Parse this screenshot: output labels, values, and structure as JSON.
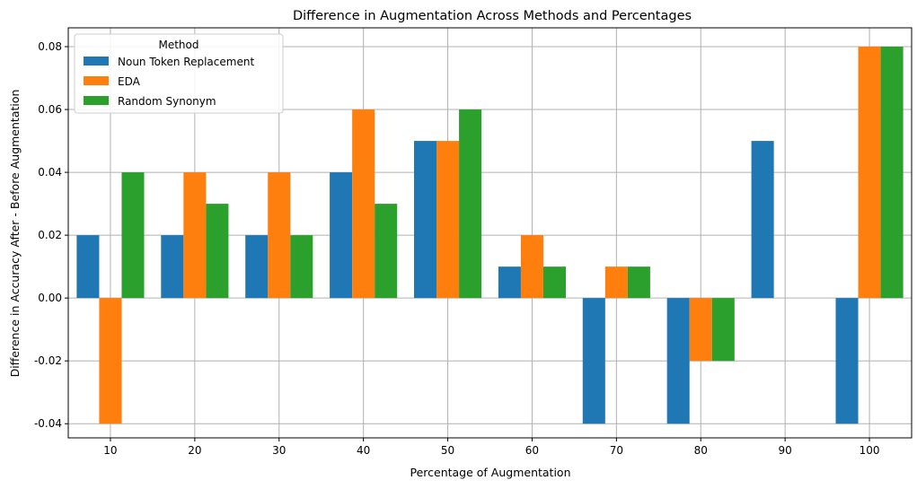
{
  "chart_data": {
    "type": "bar",
    "title": "Difference in Augmentation Across Methods and Percentages",
    "xlabel": "Percentage of Augmentation",
    "ylabel": "Difference in Accuracy After - Before Augmentation",
    "categories": [
      "10",
      "20",
      "30",
      "40",
      "50",
      "60",
      "70",
      "80",
      "90",
      "100"
    ],
    "series": [
      {
        "name": "Noun Token Replacement",
        "color": "#1f77b4",
        "values": [
          0.02,
          0.02,
          0.02,
          0.04,
          0.05,
          0.01,
          -0.04,
          -0.04,
          0.05,
          -0.04
        ]
      },
      {
        "name": "EDA",
        "color": "#ff7f0e",
        "values": [
          -0.04,
          0.04,
          0.04,
          0.06,
          0.05,
          0.02,
          0.01,
          -0.02,
          0.0,
          0.08
        ]
      },
      {
        "name": "Random Synonym",
        "color": "#2ca02c",
        "values": [
          0.04,
          0.03,
          0.02,
          0.03,
          0.06,
          0.01,
          0.01,
          -0.02,
          0.0,
          0.08
        ]
      }
    ],
    "yticks": [
      "-0.04",
      "-0.02",
      "0.00",
      "0.02",
      "0.04",
      "0.06",
      "0.08"
    ],
    "ylim": [
      -0.0445,
      0.086
    ],
    "grid": true,
    "legend": {
      "title": "Method",
      "placement": "top-left"
    }
  }
}
